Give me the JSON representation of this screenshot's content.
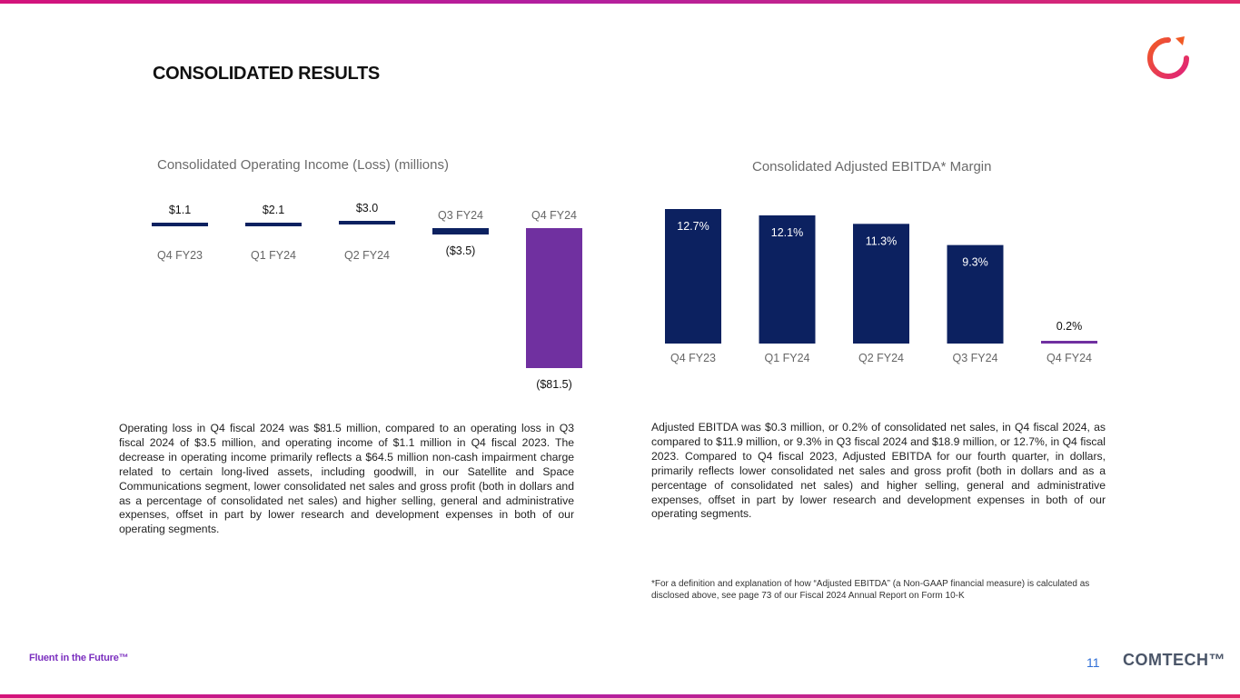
{
  "slide": {
    "title": "CONSOLIDATED RESULTS",
    "page_number": "11",
    "footer_tagline": "Fluent in the Future™",
    "brand": "COMTECH™"
  },
  "colors": {
    "navy": "#0c2160",
    "purple": "#7030a0",
    "accent_band": "#c41a8c",
    "logo_orange": "#f15a24",
    "logo_pink": "#e0227a"
  },
  "text": {
    "operating_paragraph": "Operating loss in Q4 fiscal 2024 was $81.5 million, compared to an operating loss in Q3 fiscal 2024 of $3.5 million, and operating income of $1.1 million in Q4 fiscal 2023. The decrease in operating income primarily reflects a $64.5 million non-cash impairment charge related to certain long-lived assets, including goodwill, in our Satellite and Space Communications segment, lower consolidated net sales and gross profit (both in dollars and as a percentage of consolidated net sales) and higher selling, general and administrative expenses, offset in part by lower research and development expenses in both of our operating segments.",
    "ebitda_paragraph": "Adjusted EBITDA was $0.3 million, or 0.2% of consolidated net sales, in Q4 fiscal 2024, as compared to $11.9 million, or 9.3% in Q3 fiscal 2024 and $18.9 million, or 12.7%, in Q4 fiscal 2023. Compared to Q4 fiscal 2023, Adjusted EBITDA for our fourth quarter, in dollars, primarily reflects lower consolidated net sales and gross profit (both in dollars and as a percentage of consolidated net sales) and higher selling, general and administrative expenses, offset in part by lower research and development expenses in both of our operating segments.",
    "footnote": "*For a definition and explanation of how “Adjusted EBITDA” (a Non-GAAP financial measure) is calculated as disclosed above, see page 73 of our Fiscal 2024 Annual Report on Form 10-K"
  },
  "chart_data": [
    {
      "type": "bar",
      "title": "Consolidated Operating Income (Loss) (millions)",
      "categories": [
        "Q4 FY23",
        "Q1 FY24",
        "Q2 FY24",
        "Q3 FY24",
        "Q4 FY24"
      ],
      "values": [
        1.1,
        2.1,
        3.0,
        -3.5,
        -81.5
      ],
      "data_labels": [
        "$1.1",
        "$2.1",
        "$3.0",
        "($3.5)",
        "($81.5)"
      ],
      "highlight_index": 4,
      "ylim": [
        -81.5,
        3.0
      ]
    },
    {
      "type": "bar",
      "title": "Consolidated Adjusted EBITDA* Margin",
      "categories": [
        "Q4 FY23",
        "Q1 FY24",
        "Q2 FY24",
        "Q3 FY24",
        "Q4 FY24"
      ],
      "values": [
        12.7,
        12.1,
        11.3,
        9.3,
        0.2
      ],
      "data_labels": [
        "12.7%",
        "12.1%",
        "11.3%",
        "9.3%",
        "0.2%"
      ],
      "highlight_index": 4,
      "ylim": [
        0,
        12.7
      ]
    }
  ]
}
